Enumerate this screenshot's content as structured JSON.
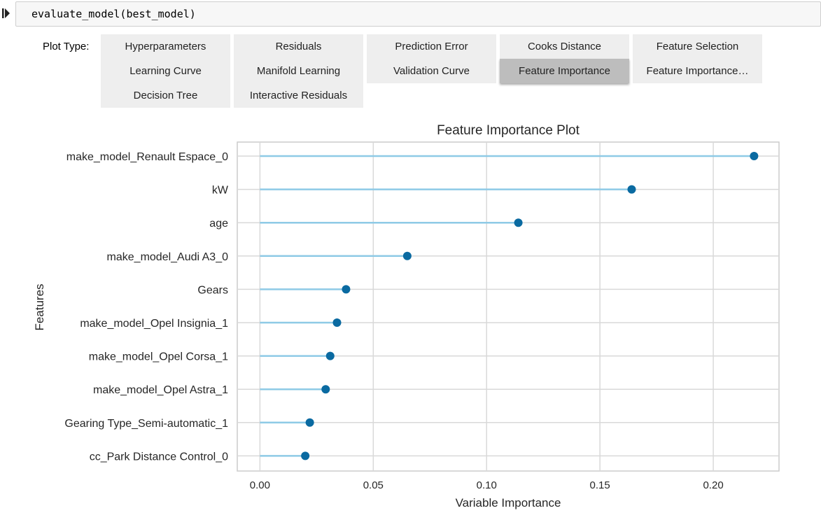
{
  "cell": {
    "code": "evaluate_model(best_model)"
  },
  "widget": {
    "label": "Plot Type:",
    "buttons": [
      {
        "label": "Hyperparameters",
        "active": false
      },
      {
        "label": "Residuals",
        "active": false
      },
      {
        "label": "Prediction Error",
        "active": false
      },
      {
        "label": "Cooks Distance",
        "active": false
      },
      {
        "label": "Feature Selection",
        "active": false
      },
      {
        "label": "Learning Curve",
        "active": false
      },
      {
        "label": "Manifold Learning",
        "active": false
      },
      {
        "label": "Validation Curve",
        "active": false
      },
      {
        "label": "Feature Importance",
        "active": true
      },
      {
        "label": "Feature Importance…",
        "active": false
      },
      {
        "label": "Decision Tree",
        "active": false
      },
      {
        "label": "Interactive Residuals",
        "active": false
      }
    ]
  },
  "chart_data": {
    "type": "lollipop",
    "title": "Feature Importance Plot",
    "xlabel": "Variable Importance",
    "ylabel": "Features",
    "xlim": [
      -0.01,
      0.229
    ],
    "xticks": [
      0.0,
      0.05,
      0.1,
      0.15,
      0.2
    ],
    "xtick_labels": [
      "0.00",
      "0.05",
      "0.10",
      "0.15",
      "0.20"
    ],
    "grid": true,
    "colors": {
      "stem": "#8ecae6",
      "dot": "#0a6aa1",
      "background": "#ffffff",
      "grid": "#d9d9d9",
      "frame": "#cccccc"
    },
    "categories": [
      "make_model_Renault Espace_0",
      "kW",
      "age",
      "make_model_Audi A3_0",
      "Gears",
      "make_model_Opel Insignia_1",
      "make_model_Opel Corsa_1",
      "make_model_Opel Astra_1",
      "Gearing Type_Semi-automatic_1",
      "cc_Park Distance Control_0"
    ],
    "values": [
      0.218,
      0.164,
      0.114,
      0.065,
      0.038,
      0.034,
      0.031,
      0.029,
      0.022,
      0.02
    ]
  }
}
